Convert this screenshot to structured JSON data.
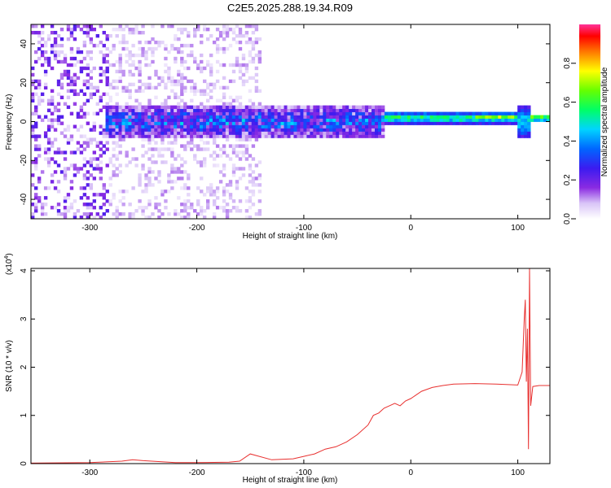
{
  "figure": {
    "title": "C2E5.2025.288.19.34.R09"
  },
  "chart_data": [
    {
      "type": "heatmap",
      "xlabel": "Height of straight line (km)",
      "ylabel": "Frequency (Hz)",
      "xlim": [
        -355,
        130
      ],
      "ylim": [
        -50,
        50
      ],
      "xticks": [
        -300,
        -200,
        -100,
        0,
        100
      ],
      "yticks": [
        -40,
        -20,
        0,
        20,
        40
      ],
      "colorbar": {
        "label": "Normalized spectral amplitude",
        "range": [
          0,
          1
        ],
        "ticks": [
          "0.0",
          "0.2",
          "0.4",
          "0.6",
          "0.8"
        ],
        "tick_values": [
          0,
          0.2,
          0.4,
          0.6,
          0.8
        ],
        "colormap": "rainbow (white→purple→blue→cyan→green→yellow→red→pink)"
      },
      "grid": false,
      "regions": [
        {
          "x_range": [
            -355,
            -282
          ],
          "freq_range": [
            -50,
            50
          ],
          "amplitude": 0.08,
          "description_level": "scattered noise"
        },
        {
          "x_range": [
            -282,
            -140
          ],
          "freq_range": [
            -50,
            50
          ],
          "amplitude": 0.04,
          "description_level": "sparse noise"
        },
        {
          "x_range": [
            -285,
            -25
          ],
          "freq_center": 0,
          "freq_halfwidth": 8,
          "amplitude": 0.3
        },
        {
          "x_range": [
            -25,
            100
          ],
          "freq_center": 2,
          "freq_halfwidth": 3,
          "amplitude": 0.6
        },
        {
          "x_range": [
            60,
            100
          ],
          "freq_center": 2,
          "freq_halfwidth": 1,
          "amplitude": 0.95
        },
        {
          "x_range": [
            100,
            112
          ],
          "freq_center": 0,
          "freq_halfwidth": 9,
          "amplitude": 0.5
        },
        {
          "x_range": [
            112,
            130
          ],
          "freq_center": 2,
          "freq_halfwidth": 2,
          "amplitude": 0.7
        }
      ]
    },
    {
      "type": "line",
      "xlabel": "Height of straight line (km)",
      "ylabel": "SNR (10 * v/v)",
      "multiplier": "(x10^4)",
      "multiplier_base": "(x10",
      "multiplier_exp": "4",
      "multiplier_close": ")",
      "xlim": [
        -355,
        130
      ],
      "ylim": [
        0,
        4.05
      ],
      "xticks": [
        -300,
        -200,
        -100,
        0,
        100
      ],
      "yticks": [
        0,
        1,
        2,
        3,
        4
      ],
      "grid": false,
      "series": [
        {
          "color": "#e8302f",
          "x": [
            -355,
            -300,
            -270,
            -260,
            -250,
            -220,
            -200,
            -170,
            -160,
            -150,
            -130,
            -110,
            -100,
            -90,
            -80,
            -70,
            -60,
            -50,
            -40,
            -35,
            -30,
            -25,
            -20,
            -15,
            -10,
            -5,
            0,
            10,
            20,
            30,
            40,
            60,
            80,
            100,
            104,
            106,
            107,
            108,
            109,
            110,
            111,
            112,
            114,
            120,
            130
          ],
          "y": [
            0.01,
            0.02,
            0.05,
            0.08,
            0.06,
            0.02,
            0.02,
            0.03,
            0.05,
            0.2,
            0.08,
            0.1,
            0.15,
            0.2,
            0.3,
            0.35,
            0.45,
            0.6,
            0.8,
            1.0,
            1.05,
            1.15,
            1.2,
            1.25,
            1.2,
            1.3,
            1.35,
            1.5,
            1.58,
            1.62,
            1.65,
            1.66,
            1.65,
            1.63,
            1.9,
            3.0,
            3.4,
            1.7,
            2.8,
            0.3,
            4.05,
            1.2,
            1.6,
            1.62,
            1.62
          ]
        }
      ]
    }
  ]
}
